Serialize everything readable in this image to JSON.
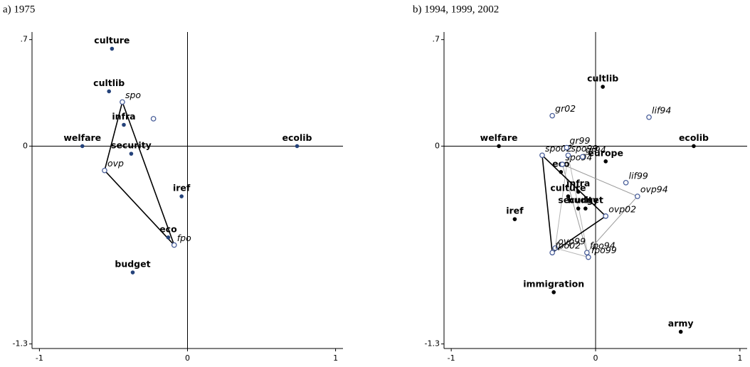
{
  "chart_data": [
    {
      "type": "scatter",
      "title": "a) 1975",
      "xlim": [
        -1.05,
        1.05
      ],
      "ylim": [
        -1.33,
        0.75
      ],
      "xticks": [
        -1,
        0,
        1
      ],
      "yticks": [
        {
          "value": 0.7,
          "label": ".7"
        },
        0,
        -1.3
      ],
      "zero_lines": true,
      "series": [
        {
          "marker": "filled",
          "color": "#24427a",
          "label_style": "issue",
          "labels": [
            "culture",
            "cultlib",
            "infra",
            "welfare",
            "security",
            "iref",
            "eco",
            "budget",
            "ecolib"
          ],
          "x": [
            -0.51,
            -0.53,
            -0.43,
            -0.71,
            -0.38,
            -0.04,
            -0.13,
            -0.37,
            0.74
          ],
          "y": [
            0.64,
            0.36,
            0.14,
            0,
            -0.05,
            -0.33,
            -0.6,
            -0.83,
            0
          ]
        },
        {
          "marker": "open",
          "color": "#4a5f9a",
          "label_style": "party",
          "polygon": true,
          "line_color": "#000",
          "line_width": 1.6,
          "labels": [
            "spo",
            "ovp",
            "fpo"
          ],
          "x": [
            -0.44,
            -0.56,
            -0.09
          ],
          "y": [
            0.29,
            -0.16,
            -0.65
          ]
        },
        {
          "marker": "open",
          "color": "#4a5f9a",
          "label_style": "party",
          "labels": [
            null
          ],
          "x": [
            -0.23
          ],
          "y": [
            0.18
          ]
        }
      ]
    },
    {
      "type": "scatter",
      "title": "b) 1994, 1999, 2002",
      "xlim": [
        -1.05,
        1.05
      ],
      "ylim": [
        -1.33,
        0.75
      ],
      "xticks": [
        -1,
        0,
        1
      ],
      "yticks": [
        {
          "value": 0.7,
          "label": ".7"
        },
        0,
        -1.3
      ],
      "zero_lines": true,
      "series": [
        {
          "marker": "filled",
          "color": "#000000",
          "label_style": "issue",
          "labels": [
            "cultlib",
            "welfare",
            "ecolib",
            "europe",
            "eco",
            "infra",
            "culture",
            "budget",
            "security",
            "iref",
            "immigration",
            "army"
          ],
          "x": [
            0.05,
            -0.67,
            0.68,
            0.07,
            -0.24,
            -0.12,
            -0.19,
            -0.07,
            -0.12,
            -0.56,
            -0.29,
            0.59
          ],
          "y": [
            0.39,
            0,
            0,
            -0.1,
            -0.17,
            -0.3,
            -0.33,
            -0.41,
            -0.41,
            -0.48,
            -0.96,
            -1.22
          ]
        },
        {
          "marker": "open",
          "color": "#4a5f9a",
          "label_style": "party",
          "polygon": true,
          "line_color": "#9a9a9a",
          "line_width": 1,
          "labels": [
            "spo94",
            "ovp94",
            "fpo94"
          ],
          "x": [
            -0.23,
            0.29,
            -0.06
          ],
          "y": [
            -0.12,
            -0.33,
            -0.7
          ]
        },
        {
          "marker": "open",
          "color": "#4a5f9a",
          "label_style": "party",
          "polygon": true,
          "line_color": "#b5b5b5",
          "line_width": 1,
          "labels": [
            "spo99",
            "ovp99",
            "fpo99"
          ],
          "x": [
            -0.19,
            -0.28,
            -0.05
          ],
          "y": [
            -0.06,
            -0.67,
            -0.73
          ]
        },
        {
          "marker": "open",
          "color": "#4a5f9a",
          "label_style": "party",
          "polygon": true,
          "line_color": "#000",
          "line_width": 1.6,
          "labels": [
            "spo02",
            "ovp02",
            "fpo02"
          ],
          "x": [
            -0.37,
            0.07,
            -0.3
          ],
          "y": [
            -0.06,
            -0.46,
            -0.7
          ]
        },
        {
          "marker": "open",
          "color": "#4a5f9a",
          "label_style": "party",
          "labels": [
            "gr02",
            "gr99",
            "gr94",
            "lif94",
            "lif99"
          ],
          "x": [
            -0.3,
            -0.2,
            -0.09,
            0.37,
            0.21
          ],
          "y": [
            0.2,
            -0.01,
            -0.07,
            0.19,
            -0.24
          ]
        }
      ]
    }
  ]
}
